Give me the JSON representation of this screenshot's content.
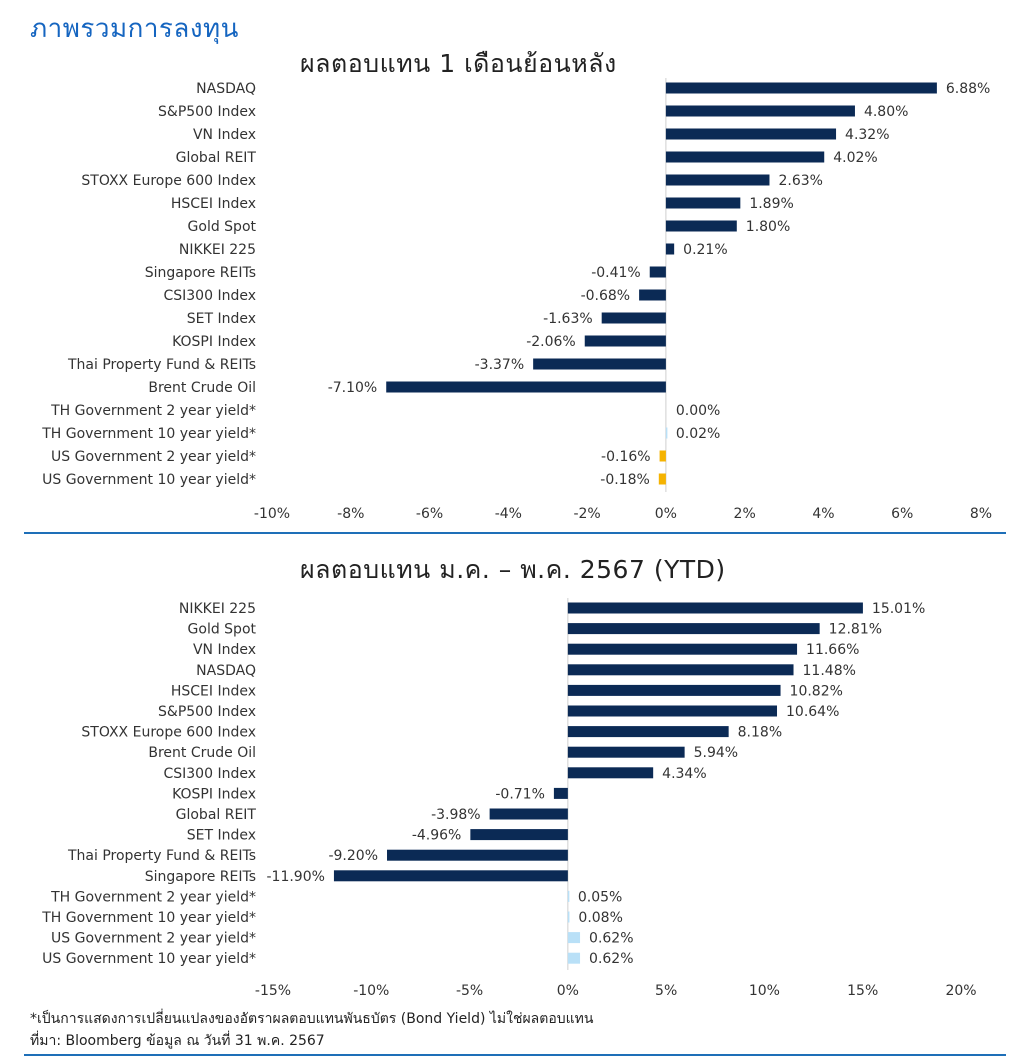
{
  "page_title": "ภาพรวมการลงทุน",
  "footnote_1": "*เป็นการแสดงการเปลี่ยนแปลงของอัตราผลตอบแทนพันธบัตร (Bond Yield) ไม่ใช่ผลตอบแทน",
  "footnote_2": "ที่มา: Bloomberg ข้อมูล ณ วันที่ 31 พ.ค. 2567",
  "colors": {
    "primary": "#0b2a55",
    "bond_negative": "#f5b301",
    "bond_positive": "#b9e0f7",
    "accent": "#1565c0"
  },
  "chart_data": [
    {
      "type": "bar",
      "orientation": "horizontal",
      "title": "ผลตอบแทน 1 เดือนย้อนหลัง",
      "xlim": [
        -10,
        8
      ],
      "xticks": [
        "-10%",
        "-8%",
        "-6%",
        "-4%",
        "-2%",
        "0%",
        "2%",
        "4%",
        "6%",
        "8%"
      ],
      "xtick_values": [
        -10,
        -8,
        -6,
        -4,
        -2,
        0,
        2,
        4,
        6,
        8
      ],
      "categories": [
        "NASDAQ",
        "S&P500 Index",
        "VN Index",
        "Global REIT",
        "STOXX Europe 600 Index",
        "HSCEI Index",
        "Gold Spot",
        "NIKKEI 225",
        "Singapore REITs",
        "CSI300 Index",
        "SET Index",
        "KOSPI Index",
        "Thai Property Fund & REITs",
        "Brent Crude Oil",
        "TH Government 2 year yield*",
        "TH Government 10 year yield*",
        "US Government 2 year yield*",
        "US Government 10 year yield*"
      ],
      "values": [
        6.88,
        4.8,
        4.32,
        4.02,
        2.63,
        1.89,
        1.8,
        0.21,
        -0.41,
        -0.68,
        -1.63,
        -2.06,
        -3.37,
        -7.1,
        0.0,
        0.02,
        -0.16,
        -0.18
      ],
      "labels": [
        "6.88%",
        "4.80%",
        "4.32%",
        "4.02%",
        "2.63%",
        "1.89%",
        "1.80%",
        "0.21%",
        "-0.41%",
        "-0.68%",
        "-1.63%",
        "-2.06%",
        "-3.37%",
        "-7.10%",
        "0.00%",
        "0.02%",
        "-0.16%",
        "-0.18%"
      ],
      "bar_kind": [
        "eq",
        "eq",
        "eq",
        "eq",
        "eq",
        "eq",
        "eq",
        "eq",
        "eq",
        "eq",
        "eq",
        "eq",
        "eq",
        "eq",
        "bond",
        "bond",
        "bond",
        "bond"
      ]
    },
    {
      "type": "bar",
      "orientation": "horizontal",
      "title": "ผลตอบแทน ม.ค. – พ.ค. 2567 (YTD)",
      "xlim": [
        -15,
        20
      ],
      "xticks": [
        "-15%",
        "-10%",
        "-5%",
        "0%",
        "5%",
        "10%",
        "15%",
        "20%"
      ],
      "xtick_values": [
        -15,
        -10,
        -5,
        0,
        5,
        10,
        15,
        20
      ],
      "categories": [
        "NIKKEI 225",
        "Gold Spot",
        "VN Index",
        "NASDAQ",
        "HSCEI Index",
        "S&P500 Index",
        "STOXX Europe 600 Index",
        "Brent Crude Oil",
        "CSI300 Index",
        "KOSPI Index",
        "Global REIT",
        "SET Index",
        "Thai Property Fund & REITs",
        "Singapore REITs",
        "TH Government 2 year yield*",
        "TH Government 10 year yield*",
        "US Government 2 year yield*",
        "US Government 10 year yield*"
      ],
      "values": [
        15.01,
        12.81,
        11.66,
        11.48,
        10.82,
        10.64,
        8.18,
        5.94,
        4.34,
        -0.71,
        -3.98,
        -4.96,
        -9.2,
        -11.9,
        0.05,
        0.08,
        0.62,
        0.62
      ],
      "labels": [
        "15.01%",
        "12.81%",
        "11.66%",
        "11.48%",
        "10.82%",
        "10.64%",
        "8.18%",
        "5.94%",
        "4.34%",
        "-0.71%",
        "-3.98%",
        "-4.96%",
        "-9.20%",
        "-11.90%",
        "0.05%",
        "0.08%",
        "0.62%",
        "0.62%"
      ],
      "bar_kind": [
        "eq",
        "eq",
        "eq",
        "eq",
        "eq",
        "eq",
        "eq",
        "eq",
        "eq",
        "eq",
        "eq",
        "eq",
        "eq",
        "eq",
        "bond",
        "bond",
        "bond",
        "bond"
      ]
    }
  ]
}
